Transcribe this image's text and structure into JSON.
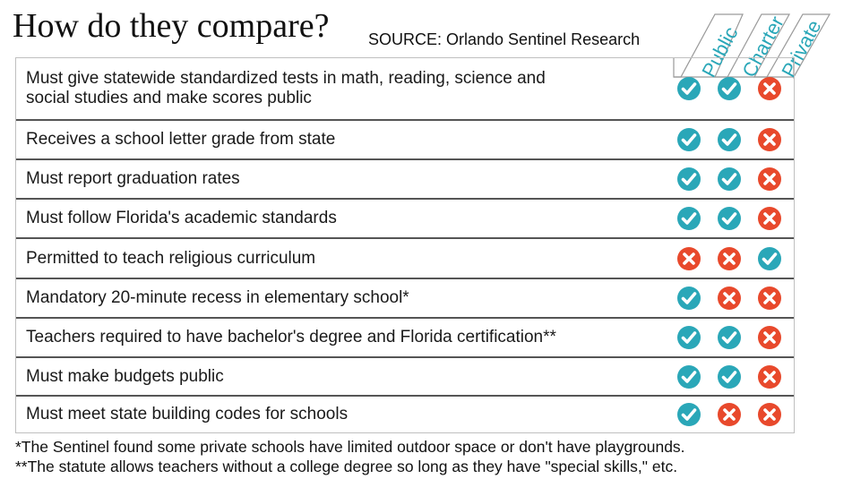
{
  "title": "How do they compare?",
  "source": "SOURCE: Orlando Sentinel Research",
  "chart_data": {
    "type": "table",
    "columns": [
      "Public",
      "Charter",
      "Private"
    ],
    "rows": [
      {
        "label": "Must give statewide standardized tests in math, reading, science and social studies and make scores public",
        "values": [
          true,
          true,
          false
        ]
      },
      {
        "label": "Receives a school letter grade from state",
        "values": [
          true,
          true,
          false
        ]
      },
      {
        "label": "Must report graduation rates",
        "values": [
          true,
          true,
          false
        ]
      },
      {
        "label": "Must follow Florida's academic standards",
        "values": [
          true,
          true,
          false
        ]
      },
      {
        "label": "Permitted to teach religious curriculum",
        "values": [
          false,
          false,
          true
        ]
      },
      {
        "label": "Mandatory 20-minute recess in elementary school*",
        "values": [
          true,
          false,
          false
        ]
      },
      {
        "label": "Teachers required to have bachelor's degree and Florida certification**",
        "values": [
          true,
          true,
          false
        ]
      },
      {
        "label": "Must make budgets public",
        "values": [
          true,
          true,
          false
        ]
      },
      {
        "label": "Must meet state building codes for schools",
        "values": [
          true,
          false,
          false
        ]
      }
    ]
  },
  "footnotes": [
    "*The Sentinel found some private schools have limited outdoor space or don't have playgrounds.",
    "**The statute allows teachers without a college degree so long as they have \"special skills,\" etc."
  ],
  "colors": {
    "yes": "#2aa7b8",
    "no": "#e8492c",
    "accent": "#2aa7b8"
  },
  "icons": {
    "yes": "check-icon",
    "no": "x-icon"
  }
}
